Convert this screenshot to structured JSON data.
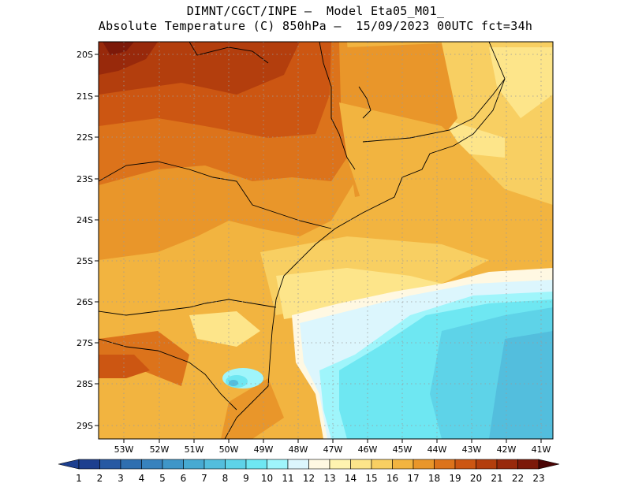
{
  "header": {
    "line1": "DIMNT/CGCT/INPE –  Model Eta05_M01_",
    "line2": "Absolute Temperature (C) 850hPa –  15/09/2023 00UTC fct=34h"
  },
  "map": {
    "lat_labels": [
      "20S",
      "21S",
      "22S",
      "23S",
      "24S",
      "25S",
      "26S",
      "27S",
      "28S",
      "29S"
    ],
    "lon_labels": [
      "53W",
      "52W",
      "51W",
      "50W",
      "49W",
      "48W",
      "47W",
      "46W",
      "45W",
      "44W",
      "43W",
      "42W",
      "41W"
    ],
    "grid_lines": "dotted",
    "features": [
      "coastline",
      "state-borders"
    ]
  },
  "colorbar": {
    "labels": [
      "1",
      "2",
      "3",
      "4",
      "5",
      "6",
      "7",
      "8",
      "9",
      "10",
      "11",
      "12",
      "13",
      "14",
      "15",
      "16",
      "17",
      "18",
      "19",
      "20",
      "21",
      "22",
      "23"
    ],
    "colors": [
      "#1d3f8f",
      "#2759a3",
      "#2f6fb0",
      "#3882bd",
      "#3f96c8",
      "#47aad2",
      "#53bedd",
      "#5ed3e8",
      "#6ee7f2",
      "#9ff5fb",
      "#dcf6fd",
      "#fff8e2",
      "#fff3b0",
      "#fde58a",
      "#f8cf62",
      "#f2b440",
      "#e9962a",
      "#dc731b",
      "#cc5612",
      "#b33e0d",
      "#98290b",
      "#7c1909",
      "#5e0a08"
    ],
    "left_arrow_color": "#1d3f8f",
    "right_arrow_color": "#4a0505"
  }
}
